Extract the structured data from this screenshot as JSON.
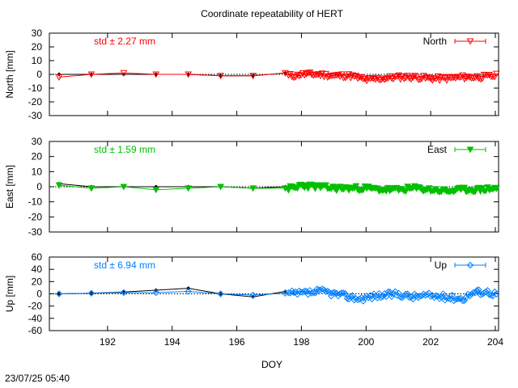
{
  "title": "Coordinate repeatability of HERT",
  "xlabel": "DOY",
  "timestamp": "23/07/25 05:40",
  "colors": {
    "North": "#ff0000",
    "East": "#00c000",
    "Up": "#0080ff",
    "daily": "#000000"
  },
  "chart_data": [
    {
      "type": "line",
      "name": "north",
      "ylabel": "North [mm]",
      "legend": "North",
      "legend_position": "top-right",
      "stat": "std ± 2.27 mm",
      "xlim": [
        190.2,
        204.1
      ],
      "ylim": [
        -30,
        30
      ],
      "yticks": [
        -30,
        -20,
        -10,
        0,
        10,
        20,
        30
      ],
      "xticks": [
        192,
        194,
        196,
        198,
        200,
        202,
        204
      ],
      "marker": "triangle-down-open",
      "series": [
        {
          "name": "North",
          "x": [
            190.5,
            191.5,
            192.5,
            193.5,
            194.5,
            195.5,
            196.5,
            197.5
          ],
          "y": [
            -2,
            0,
            1,
            0,
            0,
            -1,
            -1,
            1
          ]
        }
      ],
      "daily": {
        "x": [
          190.5,
          191.5,
          192.5,
          193.5,
          194.5,
          195.5,
          196.5,
          197.5
        ],
        "y": [
          0,
          0,
          0,
          0,
          0,
          -1,
          -1,
          1
        ]
      },
      "dense_seed": 11,
      "dense_center": [
        [
          197.9,
          0
        ],
        [
          198.5,
          0
        ],
        [
          199.0,
          -1
        ],
        [
          199.5,
          -1
        ],
        [
          200.0,
          -4
        ],
        [
          200.5,
          -3
        ],
        [
          201.0,
          -2
        ],
        [
          201.5,
          -2
        ],
        [
          202.0,
          -3
        ],
        [
          202.5,
          -3
        ],
        [
          203.0,
          -2
        ],
        [
          203.5,
          -2
        ],
        [
          204.0,
          -1
        ]
      ]
    },
    {
      "type": "line",
      "name": "east",
      "ylabel": "East [mm]",
      "legend": "East",
      "legend_position": "top-right",
      "stat": "std ± 1.59 mm",
      "xlim": [
        190.2,
        204.1
      ],
      "ylim": [
        -30,
        30
      ],
      "yticks": [
        -30,
        -20,
        -10,
        0,
        10,
        20,
        30
      ],
      "xticks": [
        192,
        194,
        196,
        198,
        200,
        202,
        204
      ],
      "marker": "triangle-down-filled",
      "series": [
        {
          "name": "East",
          "x": [
            190.5,
            191.5,
            192.5,
            193.5,
            194.5,
            195.5,
            196.5,
            197.5
          ],
          "y": [
            1,
            -1,
            0,
            -2,
            -1,
            0,
            -1,
            -1
          ]
        }
      ],
      "daily": {
        "x": [
          190.5,
          191.5,
          192.5,
          193.5,
          194.5,
          195.5,
          196.5,
          197.5
        ],
        "y": [
          2,
          0,
          0,
          0,
          0,
          0,
          -1,
          0
        ]
      },
      "dense_seed": 23,
      "dense_center": [
        [
          197.9,
          1
        ],
        [
          198.5,
          0
        ],
        [
          199.0,
          -1
        ],
        [
          199.5,
          -1
        ],
        [
          200.0,
          -1
        ],
        [
          200.5,
          -2
        ],
        [
          201.0,
          -2
        ],
        [
          201.5,
          -1
        ],
        [
          202.0,
          -2
        ],
        [
          202.5,
          -3
        ],
        [
          203.0,
          -2
        ],
        [
          203.5,
          -2
        ],
        [
          204.0,
          -1
        ]
      ]
    },
    {
      "type": "line",
      "name": "up",
      "ylabel": "Up [mm]",
      "legend": "Up",
      "legend_position": "top-right",
      "stat": "std ± 6.94 mm",
      "xlim": [
        190.2,
        204.1
      ],
      "ylim": [
        -60,
        60
      ],
      "yticks": [
        -60,
        -40,
        -20,
        0,
        20,
        40,
        60
      ],
      "xticks": [
        192,
        194,
        196,
        198,
        200,
        202,
        204
      ],
      "xticklabels": [
        "192",
        "194",
        "196",
        "198",
        "200",
        "202",
        "204"
      ],
      "marker": "diamond-open",
      "series": [
        {
          "name": "Up",
          "x": [
            190.5,
            191.5,
            192.5,
            193.5,
            194.5,
            195.5,
            196.5,
            197.5
          ],
          "y": [
            0,
            1,
            2,
            2,
            4,
            0,
            -2,
            1
          ]
        }
      ],
      "daily": {
        "x": [
          190.5,
          191.5,
          192.5,
          193.5,
          194.5,
          195.5,
          196.5,
          197.5
        ],
        "y": [
          0,
          1,
          3,
          6,
          9,
          0,
          -5,
          4
        ]
      },
      "dense_seed": 37,
      "dense_center": [
        [
          197.9,
          0
        ],
        [
          198.3,
          2
        ],
        [
          198.7,
          4
        ],
        [
          199.0,
          0
        ],
        [
          199.4,
          -4
        ],
        [
          199.8,
          -8
        ],
        [
          200.2,
          -4
        ],
        [
          200.6,
          -2
        ],
        [
          201.0,
          0
        ],
        [
          201.4,
          -5
        ],
        [
          201.8,
          -3
        ],
        [
          202.2,
          -4
        ],
        [
          202.6,
          -6
        ],
        [
          203.0,
          -8
        ],
        [
          203.3,
          2
        ],
        [
          203.7,
          4
        ],
        [
          204.0,
          0
        ]
      ]
    }
  ]
}
